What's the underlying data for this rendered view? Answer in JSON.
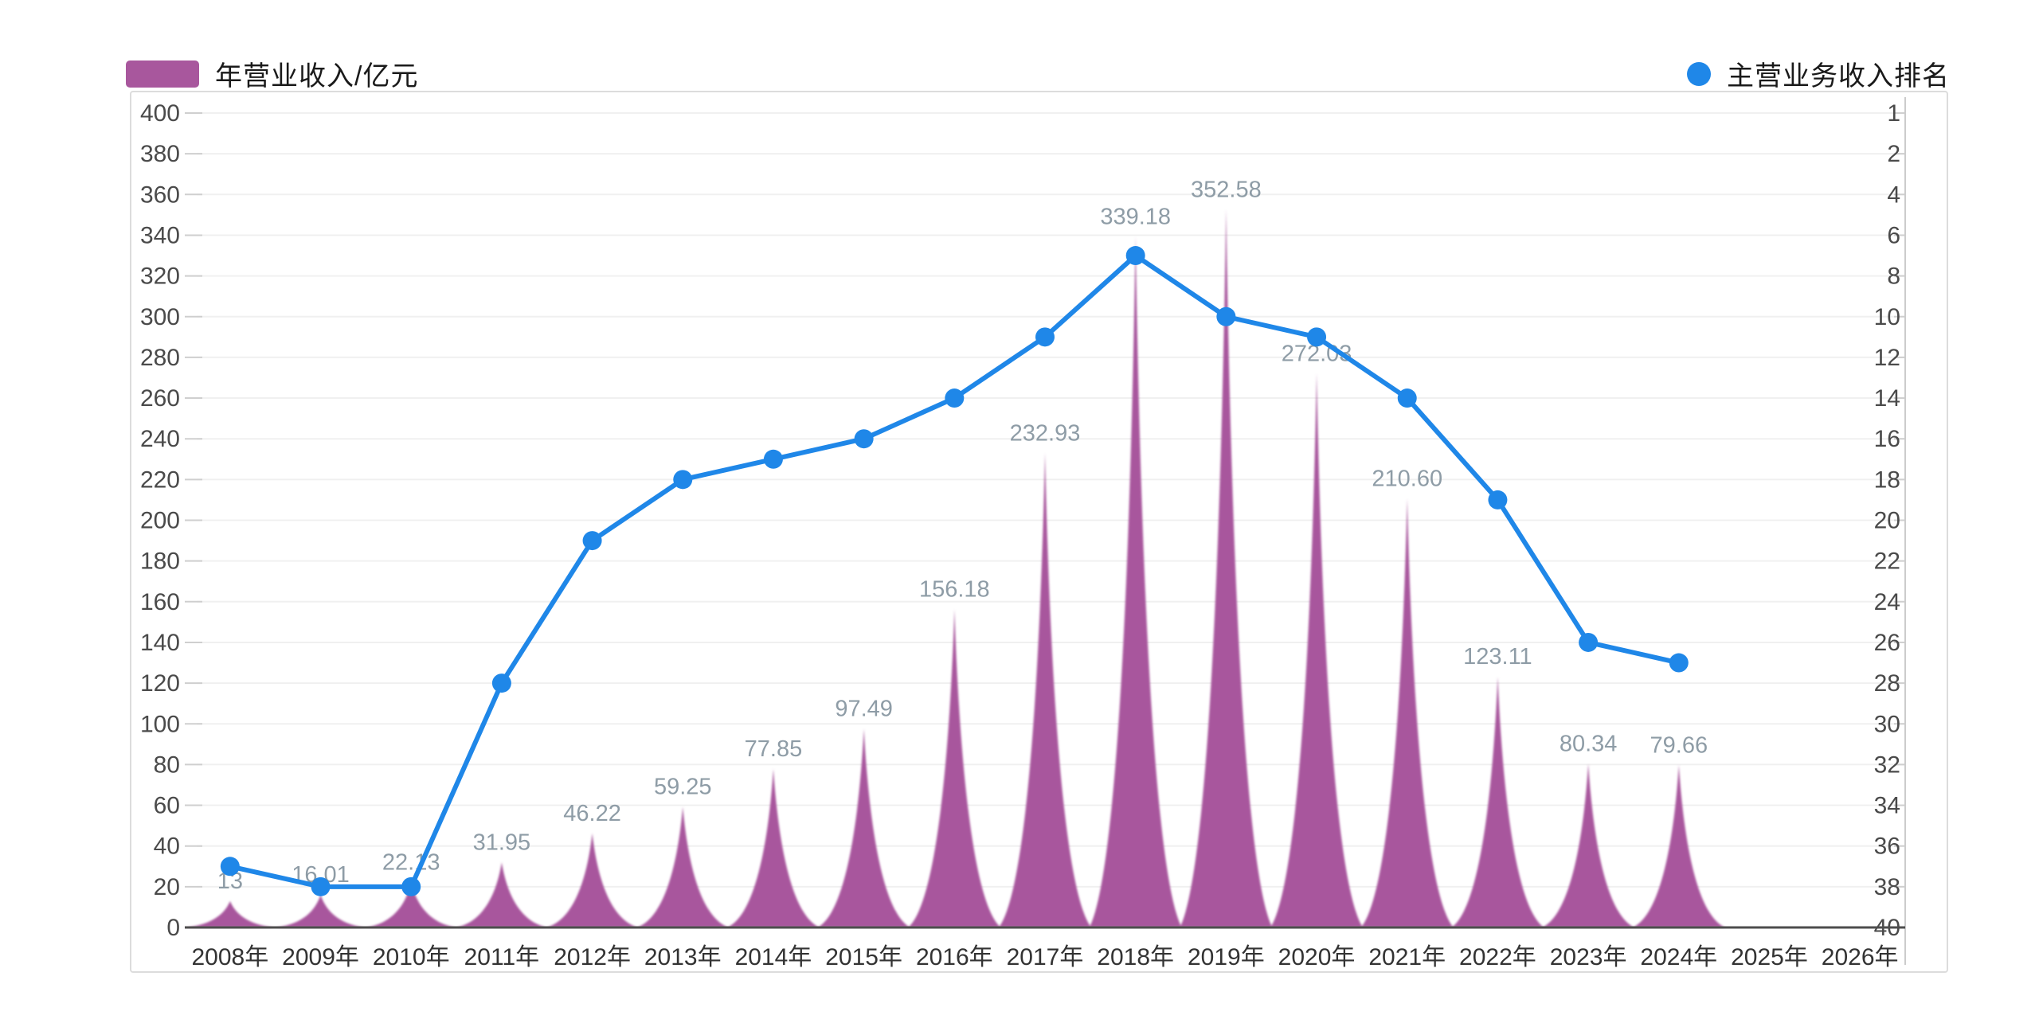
{
  "legend": {
    "revenue_label": "年营业收入/亿元",
    "rank_label": "主营业务收入排名"
  },
  "colors": {
    "revenue_area": "#a8579d",
    "rank_line": "#1f87e8",
    "value_label": "#8e9ca6",
    "axis_text": "#4a4a4a",
    "x_axis_text": "#333333",
    "grid_line": "#f0f0f0",
    "baseline": "#4d4d4d",
    "right_axis_line": "#cccccc",
    "tick_mark": "#cfcfcf",
    "border": "#dcdcdc"
  },
  "chart_data": {
    "type": "area",
    "subtype": "spike-area + line combo, horizontal grid only, legend top",
    "categories": [
      "2008年",
      "2009年",
      "2010年",
      "2011年",
      "2012年",
      "2013年",
      "2014年",
      "2015年",
      "2016年",
      "2017年",
      "2018年",
      "2019年",
      "2020年",
      "2021年",
      "2022年",
      "2023年",
      "2024年",
      "2025年",
      "2026年"
    ],
    "series": [
      {
        "name": "年营业收入/亿元",
        "type": "area-spike",
        "axis": "left",
        "values": [
          13,
          16.01,
          22.13,
          31.95,
          46.22,
          59.25,
          77.85,
          97.49,
          156.18,
          232.93,
          339.18,
          352.58,
          272.03,
          210.6,
          123.11,
          80.34,
          79.66,
          null,
          null
        ],
        "point_labels": [
          "13",
          "16.01",
          "22.13",
          "31.95",
          "46.22",
          "59.25",
          "77.85",
          "97.49",
          "156.18",
          "232.93",
          "339.18",
          "352.58",
          "272.03",
          "210.60",
          "123.11",
          "80.34",
          "79.66",
          "",
          ""
        ]
      },
      {
        "name": "主营业务收入排名",
        "type": "line",
        "axis": "right",
        "values": [
          37,
          38,
          38,
          28,
          21,
          18,
          17,
          16,
          14,
          11,
          7,
          10,
          11,
          14,
          19,
          26,
          27,
          null,
          null
        ]
      }
    ],
    "y_left": {
      "min": 0,
      "max": 400,
      "interval": 20,
      "ticks": [
        400,
        380,
        360,
        340,
        320,
        300,
        280,
        260,
        240,
        220,
        200,
        180,
        160,
        140,
        120,
        100,
        80,
        60,
        40,
        20,
        0
      ]
    },
    "y_right": {
      "inverted": true,
      "best_rank_top": 1,
      "ticks": [
        1,
        2,
        4,
        6,
        8,
        10,
        12,
        14,
        16,
        18,
        20,
        22,
        24,
        26,
        28,
        30,
        32,
        34,
        36,
        38,
        40
      ]
    }
  }
}
